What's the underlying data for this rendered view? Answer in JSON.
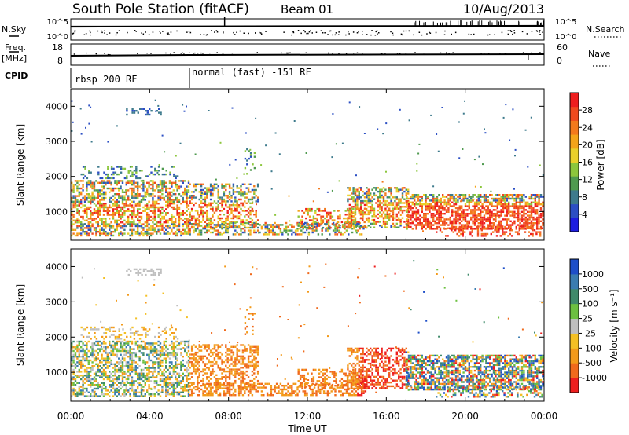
{
  "header": {
    "title": "South Pole Station (fitACF)",
    "beam": "Beam 01",
    "date": "10/Aug/2013"
  },
  "summary": {
    "nsky_label": "N.Sky",
    "nsearch_label": "N.Search",
    "freq_label": "Freq.",
    "freq_unit": "[MHz]",
    "nave_label": "Nave",
    "cpid_label": "CPID",
    "count_ticks": [
      "10^5",
      "10^0"
    ],
    "freq_ticks": [
      "18",
      "8"
    ],
    "nave_ticks": [
      "60",
      "0"
    ],
    "cpid_segments": [
      {
        "label": "rbsp 200 RF",
        "start_hour": 0
      },
      {
        "label": "normal (fast) -151 RF",
        "start_hour": 6
      }
    ]
  },
  "chart_data": [
    {
      "type": "heatmap",
      "name": "power",
      "ylabel": "Slant Range [km]",
      "ylim": [
        180,
        4500
      ],
      "yticks": [
        "1000",
        "2000",
        "3000",
        "4000"
      ],
      "xlim_hours": [
        0,
        24
      ],
      "colorbar": {
        "label": "Power [dB]",
        "ticks": [
          "4",
          "8",
          "12",
          "16",
          "20",
          "24",
          "28"
        ],
        "range": [
          0,
          32
        ],
        "colors": [
          "#1d1de0",
          "#2c4fc4",
          "#3d7a8c",
          "#4f9a4f",
          "#8cc63c",
          "#e9d02a",
          "#f4a419",
          "#f3791c",
          "#f04a1e",
          "#ee1e1e"
        ]
      }
    },
    {
      "type": "heatmap",
      "name": "velocity",
      "ylabel": "Slant Range [km]",
      "ylim": [
        180,
        4500
      ],
      "yticks": [
        "1000",
        "2000",
        "3000",
        "4000"
      ],
      "xlim_hours": [
        0,
        24
      ],
      "colorbar": {
        "label": "Velocity [m s⁻¹]",
        "ticks": [
          "1000",
          "500",
          "100",
          "25",
          "-25",
          "-100",
          "-500",
          "-1000"
        ],
        "colors": [
          "#1d4ec8",
          "#3a7cb0",
          "#3f8a6a",
          "#6cc040",
          "#bfbfbf",
          "#f4c024",
          "#f39a1a",
          "#f06a1c",
          "#ee1e1e"
        ]
      }
    }
  ],
  "xaxis": {
    "label": "Time UT",
    "ticks": [
      "00:00",
      "04:00",
      "08:00",
      "12:00",
      "16:00",
      "20:00",
      "00:00"
    ]
  }
}
